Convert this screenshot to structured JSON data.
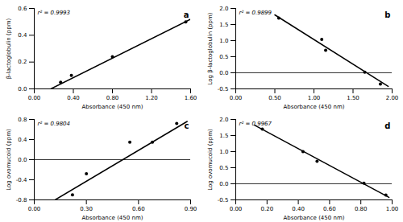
{
  "chart_data": [
    {
      "type": "scatter",
      "annotations": [
        "r² = 0.9993",
        "a"
      ],
      "xlabel": "Absorbance (450 nm)",
      "ylabel": "β-lactoglobulin (ppm)",
      "xlim": [
        0.0,
        1.6
      ],
      "ylim": [
        0.0,
        0.6
      ],
      "xticks": [
        {
          "value": 0.0,
          "label": "0.00"
        },
        {
          "value": 0.4,
          "label": "0.40"
        },
        {
          "value": 0.8,
          "label": "0.80"
        },
        {
          "value": 1.2,
          "label": "1.20"
        },
        {
          "value": 1.6,
          "label": "1.60"
        }
      ],
      "yticks": [
        {
          "value": 0.0,
          "label": "0.0"
        },
        0.2,
        0.4,
        0.6
      ],
      "series": [
        {
          "type": "scatter",
          "x": [
            0.27,
            0.38,
            0.8,
            1.55
          ],
          "values": [
            0.05,
            0.1,
            0.24,
            0.5
          ]
        },
        {
          "type": "line",
          "x": [
            0.17,
            1.6
          ],
          "values": [
            0.0,
            0.52
          ]
        }
      ]
    },
    {
      "type": "scatter",
      "annotations": [
        "r² = 0.9899",
        "b"
      ],
      "xlabel": "Absorbance (450 nm)",
      "ylabel": "Log β-lactoglobulin (ppm)",
      "xlim": [
        0.0,
        2.0
      ],
      "ylim": [
        -0.5,
        2.0
      ],
      "xticks": [
        {
          "value": 0.0,
          "label": "0.00"
        },
        {
          "value": 0.5,
          "label": "0.50"
        },
        {
          "value": 1.0,
          "label": "1.00"
        },
        {
          "value": 1.5,
          "label": "1.50"
        },
        {
          "value": 2.0,
          "label": "2.00"
        }
      ],
      "yticks": [
        -0.5,
        {
          "value": 0.0,
          "label": "0.0"
        },
        0.5,
        {
          "value": 1.0,
          "label": "1.0"
        },
        1.5,
        {
          "value": 2.0,
          "label": "2.0"
        }
      ],
      "hline": 0,
      "series": [
        {
          "type": "scatter",
          "x": [
            0.55,
            1.1,
            1.15,
            1.65,
            1.85
          ],
          "values": [
            1.7,
            1.04,
            0.7,
            0.02,
            -0.35
          ]
        },
        {
          "type": "line",
          "x": [
            0.5,
            1.95
          ],
          "values": [
            1.8,
            -0.42
          ]
        }
      ]
    },
    {
      "type": "scatter",
      "annotations": [
        "r² = 0.9804",
        "c"
      ],
      "xlabel": "Absorbance (450 nm)",
      "ylabel": "Log ovomucoid (ppm)",
      "xlim": [
        0.0,
        0.9
      ],
      "ylim": [
        -0.8,
        0.8
      ],
      "xticks": [
        {
          "value": 0.0,
          "label": "0.00"
        },
        {
          "value": 0.3,
          "label": "0.30"
        },
        {
          "value": 0.6,
          "label": "0.60"
        },
        {
          "value": 0.9,
          "label": "0.90"
        }
      ],
      "yticks": [
        -0.8,
        -0.4,
        {
          "value": 0.0,
          "label": "0.0"
        },
        0.4,
        0.8
      ],
      "hline": 0,
      "series": [
        {
          "type": "scatter",
          "x": [
            0.22,
            0.3,
            0.55,
            0.68,
            0.82
          ],
          "values": [
            -0.7,
            -0.28,
            0.35,
            0.35,
            0.72
          ]
        },
        {
          "type": "line",
          "x": [
            0.12,
            0.88
          ],
          "values": [
            -0.8,
            0.76
          ]
        }
      ]
    },
    {
      "type": "scatter",
      "annotations": [
        "r² = 0.9967",
        "d"
      ],
      "xlabel": "Absorbance (450 nm)",
      "ylabel": "Log ovomucoid (ppm)",
      "xlim": [
        0.0,
        1.0
      ],
      "ylim": [
        -0.5,
        2.0
      ],
      "xticks": [
        {
          "value": 0.0,
          "label": "0.00"
        },
        {
          "value": 0.2,
          "label": "0.20"
        },
        {
          "value": 0.4,
          "label": "0.40"
        },
        {
          "value": 0.6,
          "label": "0.60"
        },
        {
          "value": 0.8,
          "label": "0.80"
        },
        {
          "value": 1.0,
          "label": "1.00"
        }
      ],
      "yticks": [
        -0.5,
        {
          "value": 0.0,
          "label": "0.0"
        },
        0.5,
        {
          "value": 1.0,
          "label": "1.0"
        },
        1.5,
        {
          "value": 2.0,
          "label": "2.0"
        }
      ],
      "hline": 0,
      "series": [
        {
          "type": "scatter",
          "x": [
            0.17,
            0.43,
            0.52,
            0.82,
            0.96
          ],
          "values": [
            1.7,
            1.0,
            0.7,
            0.02,
            -0.35
          ]
        },
        {
          "type": "line",
          "x": [
            0.12,
            0.98
          ],
          "values": [
            1.82,
            -0.42
          ]
        }
      ]
    }
  ]
}
